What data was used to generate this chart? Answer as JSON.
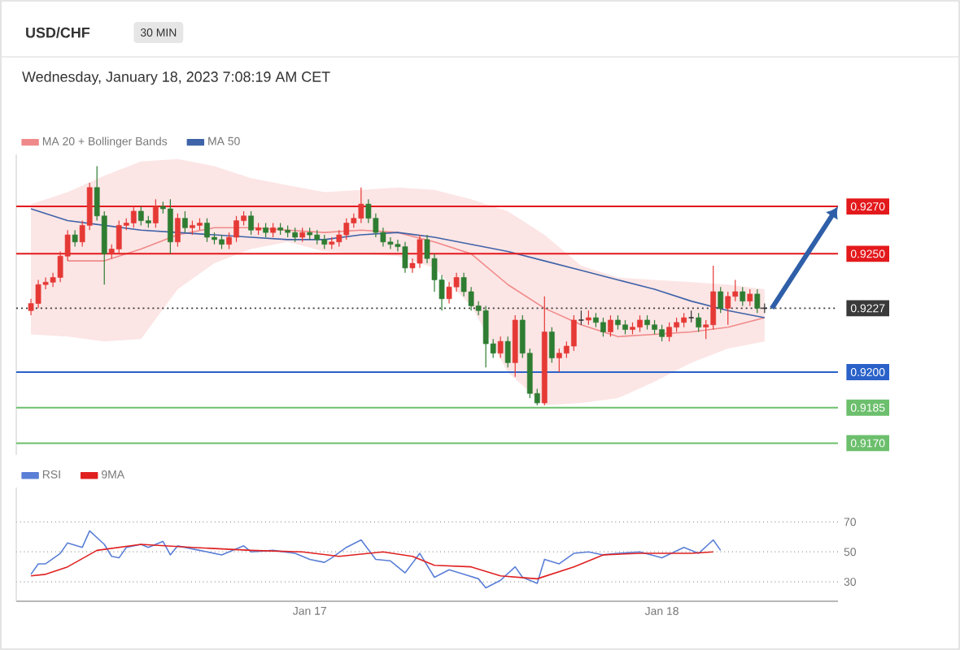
{
  "chart_data": [
    {
      "type": "candlestick",
      "title": "USD/CHF",
      "subtitle": "30 MIN",
      "annotations": [
        "Wednesday, January 18, 2023 7:08:19 AM CET"
      ],
      "x": [
        "2023-01-16T05:00",
        "2023-01-16T05:30",
        "2023-01-16T06:00",
        "2023-01-16T06:30",
        "2023-01-16T07:00",
        "2023-01-16T07:30",
        "2023-01-16T08:00",
        "2023-01-16T08:30",
        "2023-01-16T09:00",
        "2023-01-16T09:30",
        "2023-01-16T10:00",
        "2023-01-16T10:30",
        "2023-01-16T11:00",
        "2023-01-16T11:30",
        "2023-01-16T12:00",
        "2023-01-16T12:30",
        "2023-01-16T13:00",
        "2023-01-16T13:30",
        "2023-01-16T14:00",
        "2023-01-16T14:30",
        "2023-01-16T15:00",
        "2023-01-16T15:30",
        "2023-01-16T16:00",
        "2023-01-16T16:30",
        "2023-01-16T17:00",
        "2023-01-16T17:30",
        "2023-01-16T18:00",
        "2023-01-16T18:30",
        "2023-01-16T19:00",
        "2023-01-16T19:30",
        "2023-01-16T20:00",
        "2023-01-16T20:30",
        "2023-01-16T21:00",
        "2023-01-16T21:30",
        "2023-01-16T22:00",
        "2023-01-16T22:30",
        "2023-01-16T23:00",
        "2023-01-16T23:30",
        "2023-01-17T00:00",
        "2023-01-17T00:30",
        "2023-01-17T01:00",
        "2023-01-17T01:30",
        "2023-01-17T02:00",
        "2023-01-17T02:30",
        "2023-01-17T03:00",
        "2023-01-17T03:30",
        "2023-01-17T04:00",
        "2023-01-17T04:30",
        "2023-01-17T05:00",
        "2023-01-17T05:30",
        "2023-01-17T06:00",
        "2023-01-17T06:30",
        "2023-01-17T07:00",
        "2023-01-17T07:30",
        "2023-01-17T08:00",
        "2023-01-17T08:30",
        "2023-01-17T09:00",
        "2023-01-17T09:30",
        "2023-01-17T10:00",
        "2023-01-17T10:30",
        "2023-01-17T11:00",
        "2023-01-17T11:30",
        "2023-01-17T12:00",
        "2023-01-17T12:30",
        "2023-01-17T13:00",
        "2023-01-17T13:30",
        "2023-01-17T14:00",
        "2023-01-17T14:30",
        "2023-01-17T15:00",
        "2023-01-17T15:30",
        "2023-01-17T16:00",
        "2023-01-17T16:30",
        "2023-01-17T17:00",
        "2023-01-17T17:30",
        "2023-01-17T18:00",
        "2023-01-17T18:30",
        "2023-01-17T19:00",
        "2023-01-17T19:30",
        "2023-01-17T20:00",
        "2023-01-17T20:30",
        "2023-01-17T21:00",
        "2023-01-17T21:30",
        "2023-01-17T22:00",
        "2023-01-17T22:30",
        "2023-01-17T23:00",
        "2023-01-17T23:30",
        "2023-01-18T00:00",
        "2023-01-18T00:30",
        "2023-01-18T01:00",
        "2023-01-18T01:30",
        "2023-01-18T02:00",
        "2023-01-18T02:30",
        "2023-01-18T03:00",
        "2023-01-18T03:30",
        "2023-01-18T04:00",
        "2023-01-18T04:30",
        "2023-01-18T05:00",
        "2023-01-18T05:30",
        "2023-01-18T06:00",
        "2023-01-18T06:30",
        "2023-01-18T07:00"
      ],
      "ohlc": [
        [
          0.9226,
          0.9231,
          0.9224,
          0.9229
        ],
        [
          0.9229,
          0.9239,
          0.9227,
          0.9237
        ],
        [
          0.9237,
          0.924,
          0.9235,
          0.9238
        ],
        [
          0.9238,
          0.9242,
          0.9236,
          0.924
        ],
        [
          0.924,
          0.9251,
          0.9238,
          0.9249
        ],
        [
          0.9249,
          0.926,
          0.9247,
          0.9258
        ],
        [
          0.9258,
          0.926,
          0.9253,
          0.9255
        ],
        [
          0.9255,
          0.9264,
          0.9253,
          0.9262
        ],
        [
          0.9262,
          0.928,
          0.926,
          0.9278
        ],
        [
          0.9278,
          0.9287,
          0.9264,
          0.9266
        ],
        [
          0.9266,
          0.9268,
          0.9237,
          0.925
        ],
        [
          0.925,
          0.9254,
          0.9248,
          0.9252
        ],
        [
          0.9252,
          0.9264,
          0.925,
          0.9262
        ],
        [
          0.9262,
          0.9265,
          0.926,
          0.9263
        ],
        [
          0.9263,
          0.927,
          0.9261,
          0.9268
        ],
        [
          0.9268,
          0.927,
          0.9262,
          0.9264
        ],
        [
          0.9264,
          0.9266,
          0.9261,
          0.9263
        ],
        [
          0.9263,
          0.9273,
          0.9261,
          0.927
        ],
        [
          0.927,
          0.9272,
          0.9267,
          0.9269
        ],
        [
          0.9269,
          0.9273,
          0.925,
          0.9255
        ],
        [
          0.9255,
          0.9267,
          0.9253,
          0.9265
        ],
        [
          0.9265,
          0.9268,
          0.9259,
          0.9261
        ],
        [
          0.9261,
          0.9264,
          0.9258,
          0.9262
        ],
        [
          0.9262,
          0.9265,
          0.926,
          0.9263
        ],
        [
          0.9263,
          0.9265,
          0.9255,
          0.9257
        ],
        [
          0.9257,
          0.9259,
          0.9254,
          0.9256
        ],
        [
          0.9256,
          0.9258,
          0.9252,
          0.9254
        ],
        [
          0.9254,
          0.9259,
          0.9252,
          0.9257
        ],
        [
          0.9257,
          0.9266,
          0.9255,
          0.9264
        ],
        [
          0.9264,
          0.9268,
          0.9262,
          0.9266
        ],
        [
          0.9266,
          0.9268,
          0.9258,
          0.926
        ],
        [
          0.926,
          0.9263,
          0.9258,
          0.9261
        ],
        [
          0.9261,
          0.9263,
          0.9257,
          0.9259
        ],
        [
          0.9259,
          0.9263,
          0.9257,
          0.9261
        ],
        [
          0.9261,
          0.9263,
          0.9258,
          0.926
        ],
        [
          0.926,
          0.9262,
          0.9257,
          0.9259
        ],
        [
          0.9259,
          0.9261,
          0.9255,
          0.9257
        ],
        [
          0.9257,
          0.9261,
          0.9255,
          0.9259
        ],
        [
          0.9259,
          0.9261,
          0.9256,
          0.9258
        ],
        [
          0.9258,
          0.926,
          0.9254,
          0.9256
        ],
        [
          0.9256,
          0.9258,
          0.9252,
          0.9254
        ],
        [
          0.9254,
          0.9257,
          0.9252,
          0.9255
        ],
        [
          0.9255,
          0.926,
          0.9253,
          0.9258
        ],
        [
          0.9258,
          0.9265,
          0.9256,
          0.9263
        ],
        [
          0.9263,
          0.9267,
          0.9261,
          0.9265
        ],
        [
          0.9265,
          0.9278,
          0.9263,
          0.9271
        ],
        [
          0.9271,
          0.9273,
          0.9263,
          0.9265
        ],
        [
          0.9265,
          0.9267,
          0.9257,
          0.9259
        ],
        [
          0.9259,
          0.9261,
          0.9253,
          0.9255
        ],
        [
          0.9255,
          0.9257,
          0.9252,
          0.9254
        ],
        [
          0.9254,
          0.9256,
          0.9251,
          0.9253
        ],
        [
          0.9253,
          0.9255,
          0.9242,
          0.9244
        ],
        [
          0.9244,
          0.9248,
          0.9242,
          0.9246
        ],
        [
          0.9246,
          0.9258,
          0.9244,
          0.9256
        ],
        [
          0.9256,
          0.9258,
          0.9246,
          0.9248
        ],
        [
          0.9248,
          0.925,
          0.9234,
          0.9239
        ],
        [
          0.9239,
          0.9241,
          0.9226,
          0.9231
        ],
        [
          0.9231,
          0.9238,
          0.9229,
          0.9236
        ],
        [
          0.9236,
          0.9242,
          0.9234,
          0.924
        ],
        [
          0.924,
          0.9242,
          0.9232,
          0.9234
        ],
        [
          0.9234,
          0.9236,
          0.9226,
          0.9228
        ],
        [
          0.9228,
          0.923,
          0.9224,
          0.9226
        ],
        [
          0.9226,
          0.9228,
          0.9202,
          0.9212
        ],
        [
          0.9212,
          0.9214,
          0.9206,
          0.9208
        ],
        [
          0.9208,
          0.9215,
          0.9206,
          0.9213
        ],
        [
          0.9213,
          0.9215,
          0.9202,
          0.9204
        ],
        [
          0.9204,
          0.9224,
          0.9198,
          0.9222
        ],
        [
          0.9222,
          0.9224,
          0.9206,
          0.9208
        ],
        [
          0.9208,
          0.921,
          0.9189,
          0.9191
        ],
        [
          0.9191,
          0.9193,
          0.9186,
          0.9187
        ],
        [
          0.9187,
          0.9232,
          0.9186,
          0.9217
        ],
        [
          0.9217,
          0.9219,
          0.9204,
          0.9206
        ],
        [
          0.9206,
          0.921,
          0.92,
          0.9208
        ],
        [
          0.9208,
          0.9213,
          0.9206,
          0.9211
        ],
        [
          0.9211,
          0.9224,
          0.9209,
          0.9222
        ],
        [
          0.9222,
          0.9226,
          0.922,
          0.9222
        ],
        [
          0.9222,
          0.9226,
          0.922,
          0.9223
        ],
        [
          0.9223,
          0.9225,
          0.9219,
          0.9221
        ],
        [
          0.9221,
          0.9223,
          0.9215,
          0.9217
        ],
        [
          0.9217,
          0.9224,
          0.9215,
          0.9222
        ],
        [
          0.9222,
          0.9224,
          0.9218,
          0.922
        ],
        [
          0.922,
          0.9222,
          0.9216,
          0.9218
        ],
        [
          0.9218,
          0.9221,
          0.9216,
          0.9219
        ],
        [
          0.9219,
          0.9224,
          0.9217,
          0.9222
        ],
        [
          0.9222,
          0.9224,
          0.9218,
          0.922
        ],
        [
          0.922,
          0.9222,
          0.9216,
          0.9218
        ],
        [
          0.9218,
          0.922,
          0.9213,
          0.9215
        ],
        [
          0.9215,
          0.9221,
          0.9213,
          0.9219
        ],
        [
          0.9219,
          0.9223,
          0.9217,
          0.9221
        ],
        [
          0.9221,
          0.9225,
          0.9219,
          0.9223
        ],
        [
          0.9223,
          0.9226,
          0.9221,
          0.9223
        ],
        [
          0.9223,
          0.9225,
          0.9217,
          0.9219
        ],
        [
          0.9219,
          0.9222,
          0.9214,
          0.922
        ],
        [
          0.922,
          0.9245,
          0.9218,
          0.9234
        ],
        [
          0.9234,
          0.9236,
          0.9225,
          0.9227
        ],
        [
          0.9227,
          0.9234,
          0.922,
          0.9232
        ],
        [
          0.9232,
          0.9239,
          0.923,
          0.9234
        ],
        [
          0.9234,
          0.9236,
          0.9228,
          0.923
        ],
        [
          0.923,
          0.9235,
          0.9228,
          0.9233
        ],
        [
          0.9233,
          0.9235,
          0.9225,
          0.9227
        ],
        [
          0.9227,
          0.9229,
          0.9225,
          0.9227
        ]
      ],
      "series": [
        {
          "name": "MA 20 + Bollinger Bands",
          "type": "line",
          "color": "#f08a8a",
          "x": [
            "2023-01-16T05:00",
            "2023-01-16T07:30",
            "2023-01-16T10:00",
            "2023-01-16T12:30",
            "2023-01-16T15:00",
            "2023-01-16T17:30",
            "2023-01-16T20:00",
            "2023-01-16T22:30",
            "2023-01-17T01:00",
            "2023-01-17T03:30",
            "2023-01-17T06:00",
            "2023-01-17T08:30",
            "2023-01-17T11:00",
            "2023-01-17T13:30",
            "2023-01-17T16:00",
            "2023-01-17T18:30",
            "2023-01-17T21:00",
            "2023-01-17T23:30",
            "2023-01-18T02:00",
            "2023-01-18T04:30",
            "2023-01-18T07:00"
          ],
          "values": [
            null,
            0.9247,
            0.9247,
            0.9252,
            0.9258,
            0.9261,
            0.9261,
            0.926,
            0.9259,
            0.926,
            0.9259,
            0.9255,
            0.925,
            0.9237,
            0.9227,
            0.922,
            0.9215,
            0.9216,
            0.9217,
            0.9219,
            0.9223
          ],
          "lower": [
            0.9216,
            0.9215,
            0.9213,
            0.9214,
            0.9235,
            0.9246,
            0.9252,
            0.9255,
            0.9251,
            0.925,
            0.9249,
            0.9244,
            0.9228,
            0.92,
            0.9186,
            0.9187,
            0.9189,
            0.9196,
            0.9204,
            0.921,
            0.9213
          ],
          "upper": [
            0.9271,
            0.9276,
            0.9283,
            0.9289,
            0.929,
            0.9287,
            0.9282,
            0.9279,
            0.9276,
            0.9277,
            0.9278,
            0.9277,
            0.9273,
            0.9268,
            0.9258,
            0.9245,
            0.924,
            0.9239,
            0.9238,
            0.9237,
            0.9235
          ]
        },
        {
          "name": "MA 50",
          "type": "line",
          "color": "#3f63a8",
          "x": [
            "2023-01-16T05:00",
            "2023-01-16T07:30",
            "2023-01-16T10:00",
            "2023-01-16T12:30",
            "2023-01-16T15:00",
            "2023-01-16T17:30",
            "2023-01-16T20:00",
            "2023-01-16T22:30",
            "2023-01-17T01:00",
            "2023-01-17T03:30",
            "2023-01-17T06:00",
            "2023-01-17T08:30",
            "2023-01-17T11:00",
            "2023-01-17T13:30",
            "2023-01-17T16:00",
            "2023-01-17T18:30",
            "2023-01-17T21:00",
            "2023-01-17T23:30",
            "2023-01-18T02:00",
            "2023-01-18T04:30",
            "2023-01-18T07:00"
          ],
          "values": [
            0.9269,
            0.9264,
            0.9262,
            0.926,
            0.9259,
            0.9258,
            0.9257,
            0.9256,
            0.9256,
            0.9258,
            0.9259,
            0.9257,
            0.9254,
            0.9251,
            0.9247,
            0.9243,
            0.9239,
            0.9235,
            0.923,
            0.9226,
            0.9223
          ]
        }
      ],
      "ref_lines": [
        {
          "axis": "y",
          "value": 0.927,
          "label": "0.9270",
          "color": "#e3191c",
          "line_style": "solid"
        },
        {
          "axis": "y",
          "value": 0.925,
          "label": "0.9250",
          "color": "#e3191c",
          "line_style": "solid"
        },
        {
          "axis": "y",
          "value": 0.9227,
          "label": "0.9227",
          "color": "#3a3a3a",
          "line_style": "dotted"
        },
        {
          "axis": "y",
          "value": 0.92,
          "label": "0.9200",
          "color": "#2a62c9",
          "line_style": "solid"
        },
        {
          "axis": "y",
          "value": 0.9185,
          "label": "0.9185",
          "color": "#6cbf6c",
          "line_style": "solid"
        },
        {
          "axis": "y",
          "value": 0.917,
          "label": "0.9170",
          "color": "#6cbf6c",
          "line_style": "solid"
        }
      ],
      "xlim": [
        "2023-01-16T04:00",
        "2023-01-18T12:00"
      ],
      "ylim": [
        0.9165,
        0.9292
      ],
      "legend": "top left",
      "tick_labels": false
    },
    {
      "type": "line",
      "series": [
        {
          "name": "RSI",
          "color": "#5b7fd6",
          "x": [
            "2023-01-16T05:00",
            "2023-01-16T05:30",
            "2023-01-16T06:00",
            "2023-01-16T07:00",
            "2023-01-16T07:30",
            "2023-01-16T08:30",
            "2023-01-16T09:00",
            "2023-01-16T10:00",
            "2023-01-16T10:30",
            "2023-01-16T11:00",
            "2023-01-16T11:30",
            "2023-01-16T12:30",
            "2023-01-16T13:00",
            "2023-01-16T14:00",
            "2023-01-16T14:30",
            "2023-01-16T15:00",
            "2023-01-16T16:30",
            "2023-01-16T18:00",
            "2023-01-16T19:30",
            "2023-01-16T20:00",
            "2023-01-16T21:30",
            "2023-01-16T23:00",
            "2023-01-16T23:30",
            "2023-01-17T00:00",
            "2023-01-17T01:00",
            "2023-01-17T01:30",
            "2023-01-17T02:30",
            "2023-01-17T03:30",
            "2023-01-17T04:30",
            "2023-01-17T05:30",
            "2023-01-17T06:30",
            "2023-01-17T07:30",
            "2023-01-17T08:30",
            "2023-01-17T09:30",
            "2023-01-17T10:30",
            "2023-01-17T11:30",
            "2023-01-17T12:00",
            "2023-01-17T13:00",
            "2023-01-17T14:00",
            "2023-01-17T14:30",
            "2023-01-17T15:30",
            "2023-01-17T16:00",
            "2023-01-17T17:00",
            "2023-01-17T18:00",
            "2023-01-17T19:00",
            "2023-01-17T20:00",
            "2023-01-17T21:00",
            "2023-01-17T22:30",
            "2023-01-18T00:00",
            "2023-01-18T01:30",
            "2023-01-18T02:30",
            "2023-01-18T03:30",
            "2023-01-18T04:00"
          ],
          "values": [
            35,
            42,
            42,
            49,
            56,
            53,
            64,
            55,
            47,
            46,
            53,
            55,
            53,
            57,
            48,
            54,
            51,
            48,
            54,
            50,
            51,
            49,
            47,
            45,
            43,
            46,
            53,
            58,
            45,
            44,
            36,
            49,
            33,
            38,
            35,
            32,
            26,
            31,
            40,
            33,
            29,
            45,
            42,
            49,
            50,
            48,
            49,
            50,
            46,
            53,
            49,
            58,
            51
          ]
        },
        {
          "name": "9MA",
          "color": "#e02020",
          "x": [
            "2023-01-16T05:00",
            "2023-01-16T06:00",
            "2023-01-16T07:30",
            "2023-01-16T09:30",
            "2023-01-16T12:30",
            "2023-01-16T16:00",
            "2023-01-16T20:00",
            "2023-01-16T23:30",
            "2023-01-17T02:00",
            "2023-01-17T05:00",
            "2023-01-17T07:00",
            "2023-01-17T08:30",
            "2023-01-17T11:00",
            "2023-01-17T13:00",
            "2023-01-17T15:30",
            "2023-01-17T18:00",
            "2023-01-17T20:00",
            "2023-01-17T22:30",
            "2023-01-18T02:00",
            "2023-01-18T03:30"
          ],
          "values": [
            34,
            35,
            40,
            51,
            55,
            53,
            51,
            50,
            47,
            50,
            47,
            41,
            40,
            34,
            32,
            40,
            48,
            49,
            49,
            50
          ]
        }
      ],
      "xlim": [
        "2023-01-16T04:00",
        "2023-01-18T12:00"
      ],
      "xticks": [
        {
          "value": "2023-01-17",
          "label": "Jan 17"
        },
        {
          "value": "2023-01-18",
          "label": "Jan 18"
        }
      ],
      "ylim": [
        17,
        93
      ],
      "yticks": [
        70,
        50,
        30
      ],
      "grid": "y",
      "legend": "top left"
    }
  ]
}
